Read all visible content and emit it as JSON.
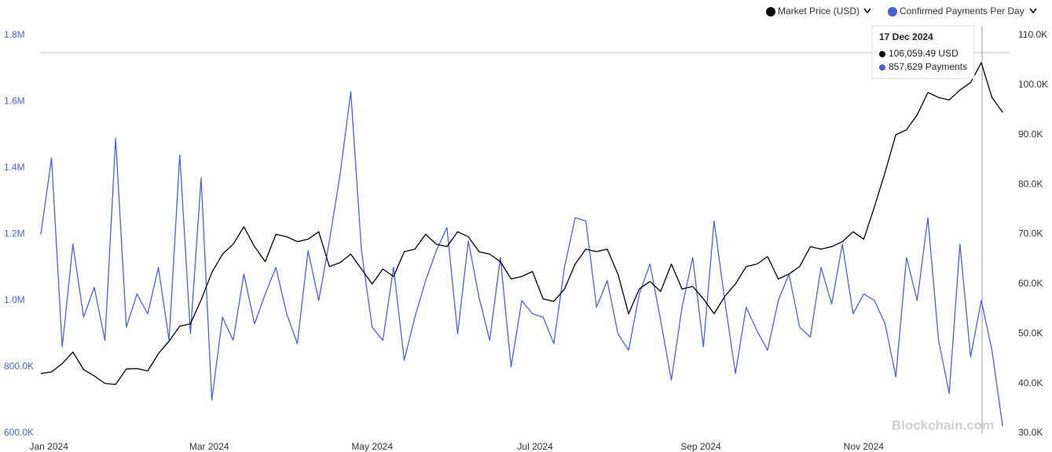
{
  "chart_data": {
    "type": "line",
    "x": [
      -3,
      1,
      5,
      9,
      13,
      17,
      21,
      25,
      29,
      33,
      37,
      41,
      45,
      49,
      53,
      57,
      61,
      65,
      69,
      73,
      77,
      81,
      85,
      89,
      93,
      97,
      101,
      105,
      109,
      113,
      117,
      121,
      125,
      129,
      133,
      137,
      141,
      145,
      149,
      153,
      157,
      161,
      165,
      169,
      173,
      177,
      181,
      185,
      189,
      193,
      197,
      201,
      205,
      209,
      213,
      217,
      221,
      225,
      229,
      233,
      237,
      241,
      245,
      249,
      253,
      257,
      261,
      265,
      269,
      273,
      277,
      281,
      285,
      289,
      293,
      297,
      301,
      305,
      309,
      313,
      317,
      321,
      325,
      329,
      333,
      337,
      341,
      345,
      349,
      353,
      357
    ],
    "xlim": [
      -3,
      359
    ],
    "xticks": [
      {
        "value": 0,
        "label": "Jan 2024"
      },
      {
        "value": 60,
        "label": "Mar 2024"
      },
      {
        "value": 121,
        "label": "May 2024"
      },
      {
        "value": 182,
        "label": "Jul 2024"
      },
      {
        "value": 244,
        "label": "Sep 2024"
      },
      {
        "value": 305,
        "label": "Nov 2024"
      }
    ],
    "ylim": [
      600000,
      1800000
    ],
    "yticks": [
      {
        "value": 600000,
        "label": "600.0K"
      },
      {
        "value": 800000,
        "label": "800.0K"
      },
      {
        "value": 1000000,
        "label": "1.0M"
      },
      {
        "value": 1200000,
        "label": "1.2M"
      },
      {
        "value": 1400000,
        "label": "1.4M"
      },
      {
        "value": 1600000,
        "label": "1.6M"
      },
      {
        "value": 1800000,
        "label": "1.8M"
      }
    ],
    "y2lim": [
      30000,
      110000
    ],
    "y2ticks": [
      {
        "value": 30000,
        "label": "30.0K"
      },
      {
        "value": 40000,
        "label": "40.0K"
      },
      {
        "value": 50000,
        "label": "50.0K"
      },
      {
        "value": 60000,
        "label": "60.0K"
      },
      {
        "value": 70000,
        "label": "70.0K"
      },
      {
        "value": 80000,
        "label": "80.0K"
      },
      {
        "value": 90000,
        "label": "90.0K"
      },
      {
        "value": 100000,
        "label": "100.0K"
      },
      {
        "value": 110000,
        "label": "110.0K"
      }
    ],
    "series": [
      {
        "name": "Market Price (USD)",
        "color": "#000000",
        "axis": "y2",
        "values": [
          42000,
          42300,
          44000,
          46300,
          42800,
          41500,
          40000,
          39800,
          42900,
          43000,
          42500,
          46000,
          48500,
          51500,
          52000,
          56800,
          62300,
          66000,
          68000,
          71500,
          67500,
          64500,
          70000,
          69500,
          68500,
          69000,
          70500,
          63500,
          64300,
          66000,
          63000,
          60000,
          63000,
          61500,
          66500,
          67000,
          70000,
          68000,
          67500,
          70500,
          69500,
          66500,
          66000,
          64500,
          61000,
          61500,
          62500,
          57000,
          56500,
          59000,
          64000,
          67000,
          66500,
          67000,
          62000,
          54000,
          59000,
          60500,
          58500,
          64000,
          59000,
          59500,
          57000,
          54000,
          57500,
          60000,
          63500,
          64000,
          65500,
          61000,
          62000,
          63500,
          67500,
          67000,
          67500,
          68500,
          70500,
          69000,
          75500,
          82500,
          90000,
          91000,
          94000,
          98500,
          97500,
          97000,
          99000,
          100500,
          104500,
          97500,
          94500
        ]
      },
      {
        "name": "Confirmed Payments Per Day",
        "color": "#4a62d8",
        "values": [
          1200000,
          1430000,
          860000,
          1170000,
          950000,
          1040000,
          880000,
          1490000,
          920000,
          1020000,
          960000,
          1100000,
          880000,
          1440000,
          900000,
          1370000,
          700000,
          950000,
          880000,
          1080000,
          930000,
          1020000,
          1100000,
          960000,
          870000,
          1150000,
          1000000,
          1180000,
          1380000,
          1630000,
          1150000,
          920000,
          880000,
          1100000,
          820000,
          950000,
          1060000,
          1150000,
          1220000,
          900000,
          1180000,
          1010000,
          880000,
          1130000,
          800000,
          1000000,
          960000,
          950000,
          870000,
          1100000,
          1250000,
          1240000,
          980000,
          1060000,
          900000,
          850000,
          1020000,
          1110000,
          940000,
          760000,
          980000,
          1130000,
          860000,
          1240000,
          1000000,
          780000,
          980000,
          910000,
          850000,
          1000000,
          1080000,
          920000,
          890000,
          1100000,
          990000,
          1170000,
          960000,
          1020000,
          1000000,
          930000,
          770000,
          1130000,
          1000000,
          1250000,
          880000,
          720000,
          1170000,
          830000,
          1000000,
          850000,
          620000
        ]
      }
    ],
    "tooltip": {
      "title": "17 Dec 2024",
      "lines": [
        "106,059.49 USD",
        "857,629 Payments"
      ]
    },
    "watermark": "Blockchain.com"
  }
}
